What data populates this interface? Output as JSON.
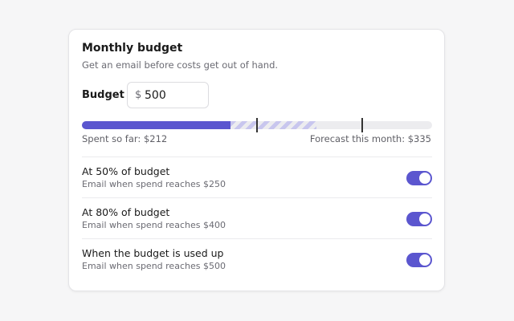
{
  "card": {
    "title": "Monthly budget",
    "subtitle": "Get an email before costs get out of hand."
  },
  "budget": {
    "label": "Budget",
    "currency": "$",
    "value": "500"
  },
  "progress": {
    "spent": 212,
    "forecast": 335,
    "scale_max": 500,
    "markers": [
      250,
      400
    ],
    "spent_text": "Spent so far: $212",
    "forecast_text": "Forecast this month: $335"
  },
  "alerts": [
    {
      "title": "At 50% of budget",
      "description": "Email when spend reaches $250",
      "enabled": true
    },
    {
      "title": "At 80% of budget",
      "description": "Email when spend reaches $400",
      "enabled": true
    },
    {
      "title": "When the budget is used up",
      "description": "Email when spend reaches $500",
      "enabled": true
    }
  ],
  "colors": {
    "accent": "#5b56cf",
    "forecast_stripe": "#c8c6ee",
    "track": "#ececef"
  }
}
